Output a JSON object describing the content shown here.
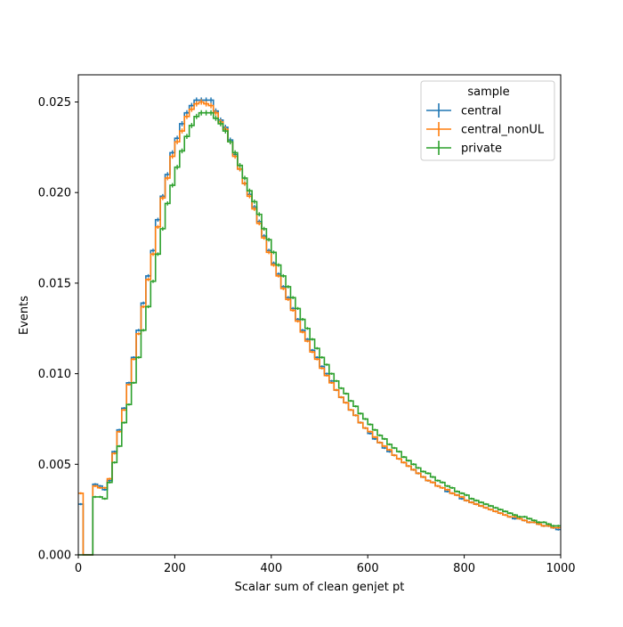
{
  "chart_data": {
    "type": "line",
    "style": "step-histogram",
    "xlabel": "Scalar sum of clean genjet pt",
    "ylabel": "Events",
    "xlim": [
      0,
      1000
    ],
    "ylim": [
      0,
      0.0265
    ],
    "x_ticks": [
      0,
      200,
      400,
      600,
      800,
      1000
    ],
    "x_tick_labels": [
      "0",
      "200",
      "400",
      "600",
      "800",
      "1000"
    ],
    "y_ticks": [
      0,
      0.005,
      0.01,
      0.015,
      0.02,
      0.025
    ],
    "y_tick_labels": [
      "0.000",
      "0.005",
      "0.010",
      "0.015",
      "0.020",
      "0.025"
    ],
    "grid": false,
    "legend": {
      "title": "sample",
      "placement": "top-right"
    },
    "bin_edges": [
      0,
      10,
      20,
      30,
      40,
      50,
      60,
      70,
      80,
      90,
      100,
      110,
      120,
      130,
      140,
      150,
      160,
      170,
      180,
      190,
      200,
      210,
      220,
      230,
      240,
      250,
      260,
      270,
      280,
      290,
      300,
      310,
      320,
      330,
      340,
      350,
      360,
      370,
      380,
      390,
      400,
      410,
      420,
      430,
      440,
      450,
      460,
      470,
      480,
      490,
      500,
      510,
      520,
      530,
      540,
      550,
      560,
      570,
      580,
      590,
      600,
      610,
      620,
      630,
      640,
      650,
      660,
      670,
      680,
      690,
      700,
      710,
      720,
      730,
      740,
      750,
      760,
      770,
      780,
      790,
      800,
      810,
      820,
      830,
      840,
      850,
      860,
      870,
      880,
      890,
      900,
      910,
      920,
      930,
      940,
      950,
      960,
      970,
      980,
      990,
      1000
    ],
    "series": [
      {
        "name": "central",
        "color": "#1f77b4",
        "values": [
          0.0028,
          0.0,
          0.0,
          0.0039,
          0.0038,
          0.0036,
          0.0041,
          0.0057,
          0.0069,
          0.0081,
          0.0095,
          0.0109,
          0.0124,
          0.0139,
          0.0154,
          0.0168,
          0.0185,
          0.0198,
          0.021,
          0.0222,
          0.023,
          0.0238,
          0.0244,
          0.0248,
          0.0251,
          0.0251,
          0.0251,
          0.0251,
          0.0245,
          0.024,
          0.0236,
          0.0229,
          0.0221,
          0.0213,
          0.0205,
          0.0199,
          0.0192,
          0.0184,
          0.0176,
          0.0168,
          0.0161,
          0.0155,
          0.0148,
          0.0142,
          0.0136,
          0.013,
          0.0124,
          0.0119,
          0.0113,
          0.0109,
          0.0104,
          0.01,
          0.0096,
          0.0091,
          0.0087,
          0.0084,
          0.008,
          0.0077,
          0.0073,
          0.007,
          0.0067,
          0.0064,
          0.0062,
          0.0059,
          0.0057,
          0.0055,
          0.0053,
          0.0051,
          0.0049,
          0.0047,
          0.0045,
          0.0043,
          0.0041,
          0.004,
          0.0038,
          0.0037,
          0.0035,
          0.0034,
          0.0033,
          0.0031,
          0.003,
          0.0029,
          0.0028,
          0.0027,
          0.0026,
          0.0025,
          0.0024,
          0.0023,
          0.0022,
          0.0021,
          0.002,
          0.002,
          0.0019,
          0.0018,
          0.0018,
          0.0017,
          0.0016,
          0.0016,
          0.0015,
          0.0014
        ]
      },
      {
        "name": "central_nonUL",
        "color": "#ff7f0e",
        "values": [
          0.0034,
          0.0,
          0.0,
          0.0038,
          0.0037,
          0.0037,
          0.0042,
          0.0056,
          0.0068,
          0.008,
          0.0094,
          0.0108,
          0.0122,
          0.0137,
          0.0152,
          0.0166,
          0.0181,
          0.0197,
          0.0208,
          0.022,
          0.0228,
          0.0234,
          0.0242,
          0.0246,
          0.0249,
          0.025,
          0.0249,
          0.0248,
          0.0244,
          0.0239,
          0.0235,
          0.0228,
          0.022,
          0.0213,
          0.0205,
          0.0198,
          0.0191,
          0.0183,
          0.0175,
          0.0167,
          0.016,
          0.0154,
          0.0147,
          0.0141,
          0.0135,
          0.0129,
          0.0123,
          0.0118,
          0.0112,
          0.0108,
          0.0103,
          0.0099,
          0.0095,
          0.0091,
          0.0087,
          0.0084,
          0.008,
          0.0077,
          0.0073,
          0.007,
          0.0068,
          0.0065,
          0.0062,
          0.006,
          0.0058,
          0.0055,
          0.0053,
          0.0051,
          0.0049,
          0.0047,
          0.0045,
          0.0043,
          0.0041,
          0.004,
          0.0038,
          0.0037,
          0.0036,
          0.0034,
          0.0033,
          0.0032,
          0.003,
          0.0029,
          0.0028,
          0.0027,
          0.0026,
          0.0025,
          0.0024,
          0.0023,
          0.0022,
          0.0021,
          0.0021,
          0.002,
          0.0019,
          0.0018,
          0.0018,
          0.0017,
          0.0016,
          0.0016,
          0.0015,
          0.0015
        ]
      },
      {
        "name": "private",
        "color": "#2ca02c",
        "values": [
          0.0,
          0.0,
          0.0,
          0.0032,
          0.0032,
          0.0031,
          0.004,
          0.0051,
          0.006,
          0.0073,
          0.0083,
          0.0095,
          0.0109,
          0.0124,
          0.0137,
          0.0151,
          0.0166,
          0.018,
          0.0194,
          0.0204,
          0.0214,
          0.0223,
          0.0231,
          0.0237,
          0.0242,
          0.0244,
          0.0244,
          0.0244,
          0.0241,
          0.0238,
          0.0234,
          0.0228,
          0.0222,
          0.0215,
          0.0208,
          0.0201,
          0.0195,
          0.0188,
          0.018,
          0.0174,
          0.0167,
          0.016,
          0.0154,
          0.0148,
          0.0142,
          0.0136,
          0.013,
          0.0125,
          0.0119,
          0.0114,
          0.0109,
          0.0105,
          0.01,
          0.0096,
          0.0092,
          0.0089,
          0.0085,
          0.0082,
          0.0078,
          0.0075,
          0.0072,
          0.0069,
          0.0066,
          0.0064,
          0.0061,
          0.0059,
          0.0057,
          0.0054,
          0.0052,
          0.005,
          0.0048,
          0.0046,
          0.0045,
          0.0043,
          0.0041,
          0.004,
          0.0038,
          0.0037,
          0.0035,
          0.0034,
          0.0033,
          0.0031,
          0.003,
          0.0029,
          0.0028,
          0.0027,
          0.0026,
          0.0025,
          0.0024,
          0.0023,
          0.0022,
          0.0021,
          0.0021,
          0.002,
          0.0019,
          0.0018,
          0.0018,
          0.0017,
          0.0016,
          0.0016
        ]
      }
    ]
  }
}
